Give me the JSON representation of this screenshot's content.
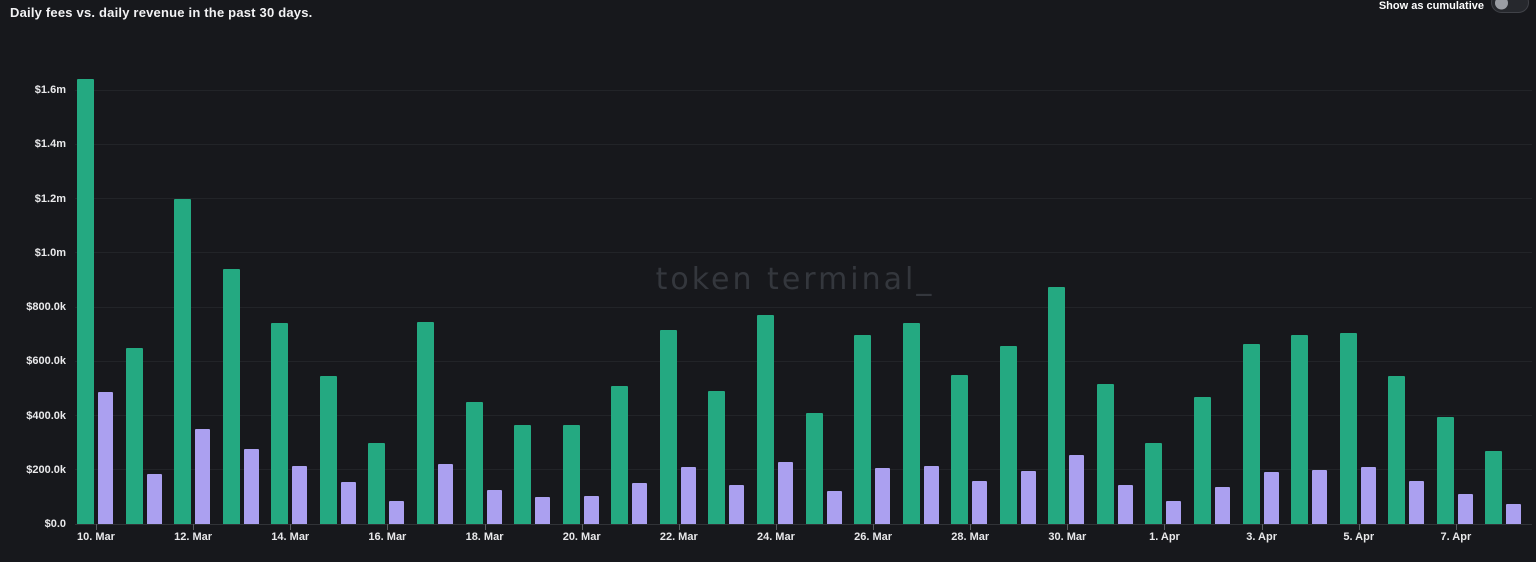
{
  "header": {
    "title": "Daily fees vs. daily revenue in the past 30 days.",
    "cumulative_toggle": {
      "label": "Show as cumulative",
      "state": "off"
    }
  },
  "watermark": "token terminal_",
  "colors": {
    "background": "#17181c",
    "fees_bar": "#24a981",
    "revenue_bar": "#aba0f0",
    "gridline": "#222428",
    "axis_text": "#e9e9eb",
    "watermark": "#34373d"
  },
  "chart_data": {
    "type": "bar",
    "title": "Daily fees vs. daily revenue in the past 30 days.",
    "grid": "horizontal",
    "legend": "none",
    "ylim": [
      0,
      1700000
    ],
    "y_ticks": [
      "$0.0",
      "$200.0k",
      "$400.0k",
      "$600.0k",
      "$800.0k",
      "$1.0m",
      "$1.2m",
      "$1.4m",
      "$1.6m"
    ],
    "y_tick_values": [
      0,
      200000,
      400000,
      600000,
      800000,
      1000000,
      1200000,
      1400000,
      1600000
    ],
    "x_tick_labels": [
      "10. Mar",
      "12. Mar",
      "14. Mar",
      "16. Mar",
      "18. Mar",
      "20. Mar",
      "22. Mar",
      "24. Mar",
      "26. Mar",
      "28. Mar",
      "30. Mar",
      "1. Apr",
      "3. Apr",
      "5. Apr",
      "7. Apr"
    ],
    "categories": [
      "10. Mar",
      "11. Mar",
      "12. Mar",
      "13. Mar",
      "14. Mar",
      "15. Mar",
      "16. Mar",
      "17. Mar",
      "18. Mar",
      "19. Mar",
      "20. Mar",
      "21. Mar",
      "22. Mar",
      "23. Mar",
      "24. Mar",
      "25. Mar",
      "26. Mar",
      "27. Mar",
      "28. Mar",
      "29. Mar",
      "30. Mar",
      "31. Mar",
      "1. Apr",
      "2. Apr",
      "3. Apr",
      "4. Apr",
      "5. Apr",
      "6. Apr",
      "7. Apr",
      "8. Apr"
    ],
    "series": [
      {
        "name": "Daily fees",
        "color": "#24a981",
        "values": [
          1640000,
          650000,
          1200000,
          940000,
          740000,
          545000,
          300000,
          745000,
          450000,
          365000,
          365000,
          510000,
          715000,
          490000,
          770000,
          410000,
          695000,
          740000,
          550000,
          655000,
          875000,
          515000,
          300000,
          470000,
          665000,
          695000,
          705000,
          545000,
          395000,
          270000
        ]
      },
      {
        "name": "Daily revenue",
        "color": "#aba0f0",
        "values": [
          485000,
          185000,
          350000,
          275000,
          215000,
          155000,
          85000,
          220000,
          125000,
          100000,
          105000,
          150000,
          210000,
          145000,
          230000,
          120000,
          205000,
          215000,
          160000,
          195000,
          255000,
          145000,
          85000,
          135000,
          190000,
          200000,
          210000,
          160000,
          110000,
          75000
        ]
      }
    ]
  }
}
